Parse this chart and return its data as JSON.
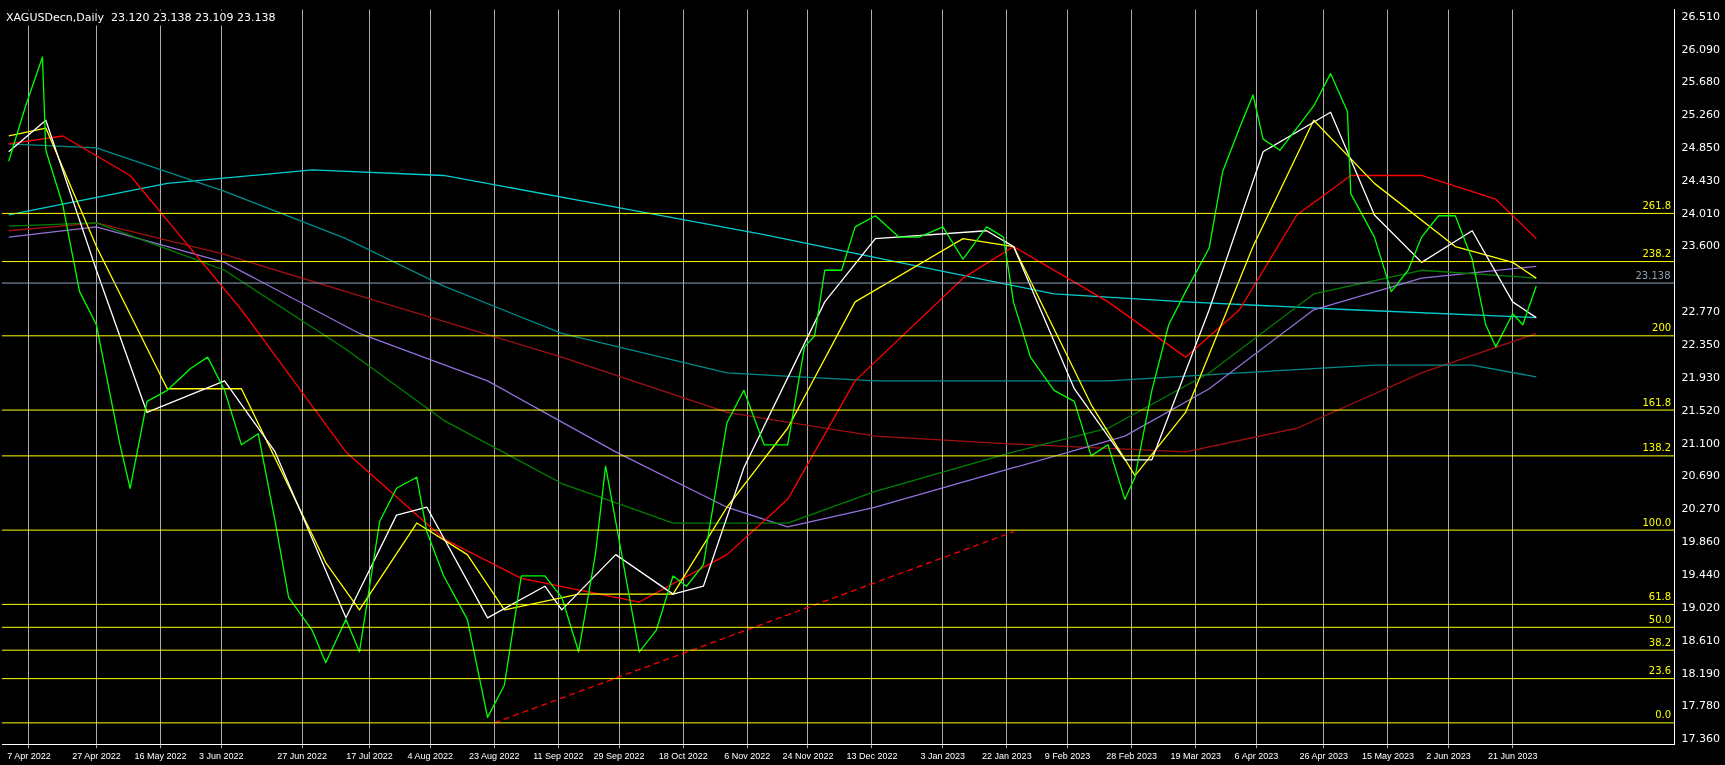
{
  "chart_data": {
    "type": "line",
    "title": "XAGUSDecn,Daily  23.120 23.138 23.109 23.138",
    "xlim": [
      "2022-03-30",
      "2023-08-08"
    ],
    "xticks": [
      {
        "value": "2022-04-07",
        "label": "7 Apr 2022"
      },
      {
        "value": "2022-04-27",
        "label": "27 Apr 2022"
      },
      {
        "value": "2022-05-16",
        "label": "16 May 2022"
      },
      {
        "value": "2022-06-03",
        "label": "3 Jun 2022"
      },
      {
        "value": "2022-06-27",
        "label": "27 Jun 2022"
      },
      {
        "value": "2022-07-17",
        "label": "17 Jul 2022"
      },
      {
        "value": "2022-08-04",
        "label": "4 Aug 2022"
      },
      {
        "value": "2022-08-23",
        "label": "23 Aug 2022"
      },
      {
        "value": "2022-09-11",
        "label": "11 Sep 2022"
      },
      {
        "value": "2022-09-29",
        "label": "29 Sep 2022"
      },
      {
        "value": "2022-10-18",
        "label": "18 Oct 2022"
      },
      {
        "value": "2022-11-06",
        "label": "6 Nov 2022"
      },
      {
        "value": "2022-11-24",
        "label": "24 Nov 2022"
      },
      {
        "value": "2022-12-13",
        "label": "13 Dec 2022"
      },
      {
        "value": "2023-01-03",
        "label": "3 Jan 2023"
      },
      {
        "value": "2023-01-22",
        "label": "22 Jan 2023"
      },
      {
        "value": "2023-02-09",
        "label": "9 Feb 2023"
      },
      {
        "value": "2023-02-28",
        "label": "28 Feb 2023"
      },
      {
        "value": "2023-03-19",
        "label": "19 Mar 2023"
      },
      {
        "value": "2023-04-06",
        "label": "6 Apr 2023"
      },
      {
        "value": "2023-04-26",
        "label": "26 Apr 2023"
      },
      {
        "value": "2023-05-15",
        "label": "15 May 2023"
      },
      {
        "value": "2023-06-02",
        "label": "2 Jun 2023"
      },
      {
        "value": "2023-06-21",
        "label": "21 Jun 2023"
      }
    ],
    "ylim": [
      17.3,
      26.6
    ],
    "yticks": [
      {
        "value": 17.36,
        "label": "17.360"
      },
      {
        "value": 17.78,
        "label": "17.780"
      },
      {
        "value": 18.19,
        "label": "18.190"
      },
      {
        "value": 18.61,
        "label": "18.610"
      },
      {
        "value": 19.02,
        "label": "19.020"
      },
      {
        "value": 19.44,
        "label": "19.440"
      },
      {
        "value": 19.86,
        "label": "19.860"
      },
      {
        "value": 20.27,
        "label": "20.270"
      },
      {
        "value": 20.69,
        "label": "20.690"
      },
      {
        "value": 21.1,
        "label": "21.100"
      },
      {
        "value": 21.52,
        "label": "21.520"
      },
      {
        "value": 21.93,
        "label": "21.930"
      },
      {
        "value": 22.35,
        "label": "22.350"
      },
      {
        "value": 22.77,
        "label": "22.770"
      },
      {
        "value": 23.6,
        "label": "23.600"
      },
      {
        "value": 24.01,
        "label": "24.010"
      },
      {
        "value": 24.43,
        "label": "24.430"
      },
      {
        "value": 24.85,
        "label": "24.850"
      },
      {
        "value": 25.26,
        "label": "25.260"
      },
      {
        "value": 25.68,
        "label": "25.680"
      },
      {
        "value": 26.09,
        "label": "26.090"
      },
      {
        "value": 26.51,
        "label": "26.510"
      }
    ],
    "grid": "x",
    "legend": false,
    "annotations": [
      {
        "text": "261.8",
        "x": "2023-08-07",
        "y": 24.02
      },
      {
        "text": "238.2",
        "x": "2023-08-07",
        "y": 23.41
      },
      {
        "text": "200",
        "x": "2023-08-07",
        "y": 22.47
      },
      {
        "text": "161.8",
        "x": "2023-08-07",
        "y": 21.53
      },
      {
        "text": "138.2",
        "x": "2023-08-07",
        "y": 20.95
      },
      {
        "text": "100.0",
        "x": "2023-08-07",
        "y": 20.01
      },
      {
        "text": "61.8",
        "x": "2023-08-07",
        "y": 19.07
      },
      {
        "text": "50.0",
        "x": "2023-08-07",
        "y": 18.78
      },
      {
        "text": "38.2",
        "x": "2023-08-07",
        "y": 18.49
      },
      {
        "text": "23.6",
        "x": "2023-08-07",
        "y": 18.13
      },
      {
        "text": "0.0",
        "x": "2023-08-07",
        "y": 17.57
      }
    ],
    "ref_lines": [
      {
        "axis": "y",
        "value": 24.02,
        "color": "#ffff00"
      },
      {
        "axis": "y",
        "value": 23.41,
        "color": "#ffff00"
      },
      {
        "axis": "y",
        "value": 22.47,
        "color": "#ffff00"
      },
      {
        "axis": "y",
        "value": 21.53,
        "color": "#ffff00"
      },
      {
        "axis": "y",
        "value": 20.95,
        "color": "#ffff00"
      },
      {
        "axis": "y",
        "value": 20.01,
        "color": "#ffff00"
      },
      {
        "axis": "y",
        "value": 19.07,
        "color": "#ffff00"
      },
      {
        "axis": "y",
        "value": 18.78,
        "color": "#ffff00"
      },
      {
        "axis": "y",
        "value": 18.49,
        "color": "#ffff00"
      },
      {
        "axis": "y",
        "value": 18.13,
        "color": "#ffff00"
      },
      {
        "axis": "y",
        "value": 17.57,
        "color": "#ffff00"
      },
      {
        "axis": "y",
        "value": 23.138,
        "label": "23.138",
        "color": "#8ba0b4"
      }
    ],
    "series": [
      {
        "color": "#00ff00",
        "x": [
          "2022-04-01",
          "2022-04-06",
          "2022-04-11",
          "2022-04-12",
          "2022-04-17",
          "2022-04-22",
          "2022-04-27",
          "2022-05-04",
          "2022-05-07",
          "2022-05-12",
          "2022-05-18",
          "2022-05-25",
          "2022-05-30",
          "2022-06-04",
          "2022-06-09",
          "2022-06-14",
          "2022-06-19",
          "2022-06-23",
          "2022-06-30",
          "2022-07-04",
          "2022-07-10",
          "2022-07-14",
          "2022-07-20",
          "2022-07-25",
          "2022-07-31",
          "2022-08-03",
          "2022-08-08",
          "2022-08-15",
          "2022-08-21",
          "2022-08-26",
          "2022-08-31",
          "2022-09-07",
          "2022-09-12",
          "2022-09-17",
          "2022-09-22",
          "2022-09-25",
          "2022-09-28",
          "2022-10-05",
          "2022-10-10",
          "2022-10-15",
          "2022-10-19",
          "2022-10-24",
          "2022-10-31",
          "2022-11-05",
          "2022-11-11",
          "2022-11-18",
          "2022-11-23",
          "2022-11-26",
          "2022-11-29",
          "2022-12-04",
          "2022-12-08",
          "2022-12-14",
          "2022-12-21",
          "2022-12-27",
          "2023-01-03",
          "2023-01-09",
          "2023-01-16",
          "2023-01-21",
          "2023-01-24",
          "2023-01-29",
          "2023-02-05",
          "2023-02-11",
          "2023-02-16",
          "2023-02-21",
          "2023-02-26",
          "2023-03-01",
          "2023-03-06",
          "2023-03-11",
          "2023-03-16",
          "2023-03-23",
          "2023-03-27",
          "2023-04-01",
          "2023-04-05",
          "2023-04-08",
          "2023-04-13",
          "2023-04-18",
          "2023-04-23",
          "2023-04-28",
          "2023-05-03",
          "2023-05-04",
          "2023-05-11",
          "2023-05-16",
          "2023-05-21",
          "2023-05-25",
          "2023-05-30",
          "2023-06-04",
          "2023-06-09",
          "2023-06-13",
          "2023-06-16",
          "2023-06-21",
          "2023-06-24",
          "2023-06-28"
        ],
        "values": [
          24.68,
          25.38,
          26.0,
          24.82,
          24.13,
          23.03,
          22.61,
          21.09,
          20.54,
          21.64,
          21.78,
          22.06,
          22.2,
          21.78,
          21.09,
          21.23,
          20.12,
          19.16,
          18.74,
          18.33,
          18.88,
          18.47,
          20.12,
          20.54,
          20.68,
          19.99,
          19.43,
          18.88,
          17.64,
          18.05,
          19.43,
          19.43,
          19.16,
          18.47,
          19.71,
          20.82,
          20.12,
          18.47,
          18.74,
          19.43,
          19.3,
          19.57,
          21.37,
          21.78,
          21.09,
          21.09,
          22.33,
          22.47,
          23.3,
          23.3,
          23.85,
          23.99,
          23.72,
          23.72,
          23.85,
          23.44,
          23.85,
          23.72,
          22.89,
          22.2,
          21.78,
          21.64,
          20.95,
          21.09,
          20.4,
          20.68,
          21.78,
          22.61,
          23.03,
          23.58,
          24.55,
          25.1,
          25.52,
          24.96,
          24.82,
          25.1,
          25.38,
          25.79,
          25.31,
          24.27,
          23.72,
          23.03,
          23.3,
          23.72,
          23.99,
          23.99,
          23.44,
          22.61,
          22.33,
          22.75,
          22.61,
          23.1
        ]
      },
      {
        "color": "#ffffff",
        "x": [
          "2022-04-01",
          "2022-04-12",
          "2022-04-27",
          "2022-05-12",
          "2022-06-04",
          "2022-06-19",
          "2022-07-10",
          "2022-07-25",
          "2022-08-03",
          "2022-08-21",
          "2022-09-07",
          "2022-09-12",
          "2022-09-28",
          "2022-10-15",
          "2022-10-24",
          "2022-11-05",
          "2022-11-29",
          "2022-12-14",
          "2023-01-16",
          "2023-01-24",
          "2023-02-11",
          "2023-02-26",
          "2023-03-06",
          "2023-03-23",
          "2023-04-08",
          "2023-04-28",
          "2023-05-11",
          "2023-05-25",
          "2023-06-09",
          "2023-06-21",
          "2023-06-28"
        ],
        "values": [
          24.8,
          25.2,
          23.3,
          21.5,
          21.9,
          21.0,
          18.9,
          20.2,
          20.3,
          18.9,
          19.3,
          19.0,
          19.7,
          19.2,
          19.3,
          20.8,
          22.9,
          23.7,
          23.8,
          23.6,
          21.8,
          20.9,
          20.9,
          22.8,
          24.8,
          25.3,
          24.0,
          23.4,
          23.8,
          22.9,
          22.7
        ]
      },
      {
        "color": "#ffff00",
        "x": [
          "2022-04-01",
          "2022-04-12",
          "2022-04-27",
          "2022-05-18",
          "2022-06-09",
          "2022-07-04",
          "2022-07-14",
          "2022-07-31",
          "2022-08-15",
          "2022-08-26",
          "2022-09-17",
          "2022-10-15",
          "2022-10-31",
          "2022-11-18",
          "2022-12-08",
          "2023-01-09",
          "2023-01-24",
          "2023-02-16",
          "2023-03-01",
          "2023-03-16",
          "2023-04-05",
          "2023-04-23",
          "2023-05-11",
          "2023-06-04",
          "2023-06-21",
          "2023-06-28"
        ],
        "values": [
          25.0,
          25.1,
          23.6,
          21.8,
          21.8,
          19.6,
          19.0,
          20.1,
          19.7,
          19.0,
          19.2,
          19.2,
          20.3,
          21.3,
          22.9,
          23.7,
          23.6,
          21.6,
          20.7,
          21.5,
          23.6,
          25.2,
          24.4,
          23.6,
          23.4,
          23.2
        ]
      },
      {
        "color": "#ff0000",
        "x": [
          "2022-04-01",
          "2022-04-17",
          "2022-05-07",
          "2022-06-09",
          "2022-07-10",
          "2022-08-08",
          "2022-08-31",
          "2022-10-05",
          "2022-10-31",
          "2022-11-18",
          "2022-12-08",
          "2023-01-09",
          "2023-01-24",
          "2023-02-21",
          "2023-03-16",
          "2023-04-01",
          "2023-04-18",
          "2023-05-04",
          "2023-05-25",
          "2023-06-16",
          "2023-06-28"
        ],
        "values": [
          24.9,
          25.0,
          24.5,
          22.8,
          21.0,
          19.9,
          19.4,
          19.1,
          19.7,
          20.4,
          21.9,
          23.2,
          23.6,
          22.9,
          22.2,
          22.8,
          24.0,
          24.5,
          24.5,
          24.2,
          23.7
        ]
      },
      {
        "color": "#008000",
        "x": [
          "2022-04-01",
          "2022-04-27",
          "2022-06-04",
          "2022-07-10",
          "2022-08-08",
          "2022-09-12",
          "2022-10-15",
          "2022-11-18",
          "2022-12-14",
          "2023-01-24",
          "2023-02-21",
          "2023-03-23",
          "2023-04-23",
          "2023-05-25",
          "2023-06-28"
        ],
        "values": [
          23.86,
          23.9,
          23.3,
          22.3,
          21.4,
          20.6,
          20.1,
          20.1,
          20.5,
          21.0,
          21.3,
          22.0,
          23.0,
          23.3,
          23.2
        ]
      },
      {
        "color": "#9370db",
        "x": [
          "2022-04-01",
          "2022-04-27",
          "2022-06-04",
          "2022-07-14",
          "2022-08-21",
          "2022-09-28",
          "2022-10-31",
          "2022-11-18",
          "2022-12-14",
          "2023-01-24",
          "2023-02-26",
          "2023-03-23",
          "2023-04-23",
          "2023-05-25",
          "2023-06-28"
        ],
        "values": [
          23.72,
          23.85,
          23.4,
          22.5,
          21.9,
          21.0,
          20.3,
          20.05,
          20.3,
          20.8,
          21.2,
          21.8,
          22.8,
          23.2,
          23.35
        ]
      },
      {
        "color": "#008b8b",
        "x": [
          "2022-04-01",
          "2022-04-27",
          "2022-06-04",
          "2022-07-10",
          "2022-08-08",
          "2022-09-12",
          "2022-10-31",
          "2022-12-14",
          "2023-01-24",
          "2023-02-21",
          "2023-04-01",
          "2023-05-11",
          "2023-06-09",
          "2023-06-28"
        ],
        "values": [
          24.9,
          24.85,
          24.3,
          23.7,
          23.1,
          22.5,
          22.0,
          21.9,
          21.9,
          21.9,
          22.0,
          22.1,
          22.1,
          21.95
        ]
      },
      {
        "color": "#00ced1",
        "x": [
          "2022-04-01",
          "2022-05-18",
          "2022-06-30",
          "2022-08-08",
          "2022-09-28",
          "2022-11-11",
          "2022-12-21",
          "2023-02-05",
          "2023-03-16",
          "2023-05-04",
          "2023-06-28"
        ],
        "values": [
          24.0,
          24.4,
          24.57,
          24.5,
          24.1,
          23.75,
          23.4,
          23.0,
          22.9,
          22.8,
          22.7
        ]
      },
      {
        "color": "#a01010",
        "x": [
          "2022-04-01",
          "2022-04-27",
          "2022-06-04",
          "2022-07-20",
          "2022-09-12",
          "2022-10-31",
          "2022-12-14",
          "2023-01-24",
          "2023-03-16",
          "2023-04-18",
          "2023-05-25",
          "2023-06-28"
        ],
        "values": [
          23.8,
          23.9,
          23.5,
          22.9,
          22.2,
          21.5,
          21.2,
          21.1,
          21.0,
          21.3,
          22.0,
          22.5
        ]
      },
      {
        "color": "#ff0000",
        "line_style": "dashed",
        "x": [
          "2022-08-23",
          "2023-01-24"
        ],
        "values": [
          17.57,
          19.99
        ]
      }
    ]
  }
}
